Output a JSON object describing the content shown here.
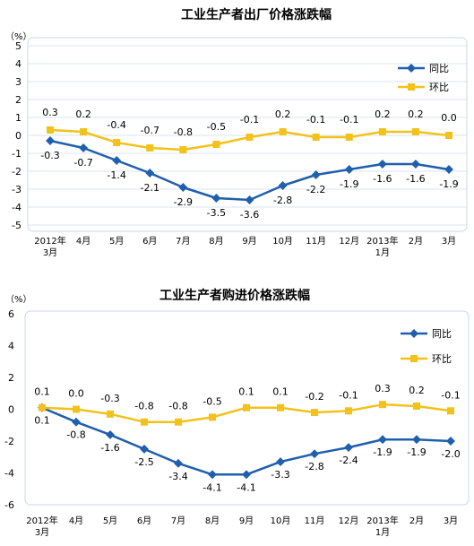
{
  "colors": {
    "yoy": "#1f5fad",
    "mom": "#f2c21b",
    "plot_bg": "#ffffff",
    "grid": "#d9e6f2",
    "border": "#c7d9ec"
  },
  "chart_data": [
    {
      "type": "line",
      "title": "工业生产者出厂价格涨跌幅",
      "ylabel": "（%）",
      "ylim": [
        -5,
        5
      ],
      "yticks": [
        "5",
        "4",
        "3",
        "2",
        "1",
        "0",
        "-1",
        "-2",
        "-3",
        "-4",
        "-5"
      ],
      "categories": [
        "2012年3月",
        "4月",
        "5月",
        "6月",
        "7月",
        "8月",
        "9月",
        "10月",
        "11月",
        "12月",
        "2013年1月",
        "2月",
        "3月"
      ],
      "series": [
        {
          "name": "同比",
          "values": [
            -0.3,
            -0.7,
            -1.4,
            -2.1,
            -2.9,
            -3.5,
            -3.6,
            -2.8,
            -2.2,
            -1.9,
            -1.6,
            -1.6,
            -1.9
          ],
          "labels": [
            "-0.3",
            "-0.7",
            "-1.4",
            "-2.1",
            "-2.9",
            "-3.5",
            "-3.6",
            "-2.8",
            "-2.2",
            "-1.9",
            "-1.6",
            "-1.6",
            "-1.9"
          ]
        },
        {
          "name": "环比",
          "values": [
            0.3,
            0.2,
            -0.4,
            -0.7,
            -0.8,
            -0.5,
            -0.1,
            0.2,
            -0.1,
            -0.1,
            0.2,
            0.2,
            0.0
          ],
          "labels": [
            "0.3",
            "0.2",
            "-0.4",
            "-0.7",
            "-0.8",
            "-0.5",
            "-0.1",
            "0.2",
            "-0.1",
            "-0.1",
            "0.2",
            "0.2",
            "0.0"
          ]
        }
      ],
      "legend": "top-right",
      "grid": true
    },
    {
      "type": "line",
      "title": "工业生产者购进价格涨跌幅",
      "ylabel": "（%）",
      "ylim": [
        -6,
        6
      ],
      "yticks": [
        "6",
        "4",
        "2",
        "0",
        "-2",
        "-4",
        "-6"
      ],
      "categories": [
        "2012年3月",
        "4月",
        "5月",
        "6月",
        "7月",
        "8月",
        "9月",
        "10月",
        "11月",
        "12月",
        "2013年1月",
        "2月",
        "3月"
      ],
      "series": [
        {
          "name": "同比",
          "values": [
            0.1,
            -0.8,
            -1.6,
            -2.5,
            -3.4,
            -4.1,
            -4.1,
            -3.3,
            -2.8,
            -2.4,
            -1.9,
            -1.9,
            -2.0
          ],
          "labels": [
            "0.1",
            "-0.8",
            "-1.6",
            "-2.5",
            "-3.4",
            "-4.1",
            "-4.1",
            "-3.3",
            "-2.8",
            "-2.4",
            "-1.9",
            "-1.9",
            "-2.0"
          ]
        },
        {
          "name": "环比",
          "values": [
            0.1,
            0.0,
            -0.3,
            -0.8,
            -0.8,
            -0.5,
            0.1,
            0.1,
            -0.2,
            -0.1,
            0.3,
            0.2,
            -0.1
          ],
          "labels": [
            "0.1",
            "0.0",
            "-0.3",
            "-0.8",
            "-0.8",
            "-0.5",
            "0.1",
            "0.1",
            "-0.2",
            "-0.1",
            "0.3",
            "0.2",
            "-0.1"
          ]
        }
      ],
      "legend": "top-right",
      "grid": false
    }
  ]
}
